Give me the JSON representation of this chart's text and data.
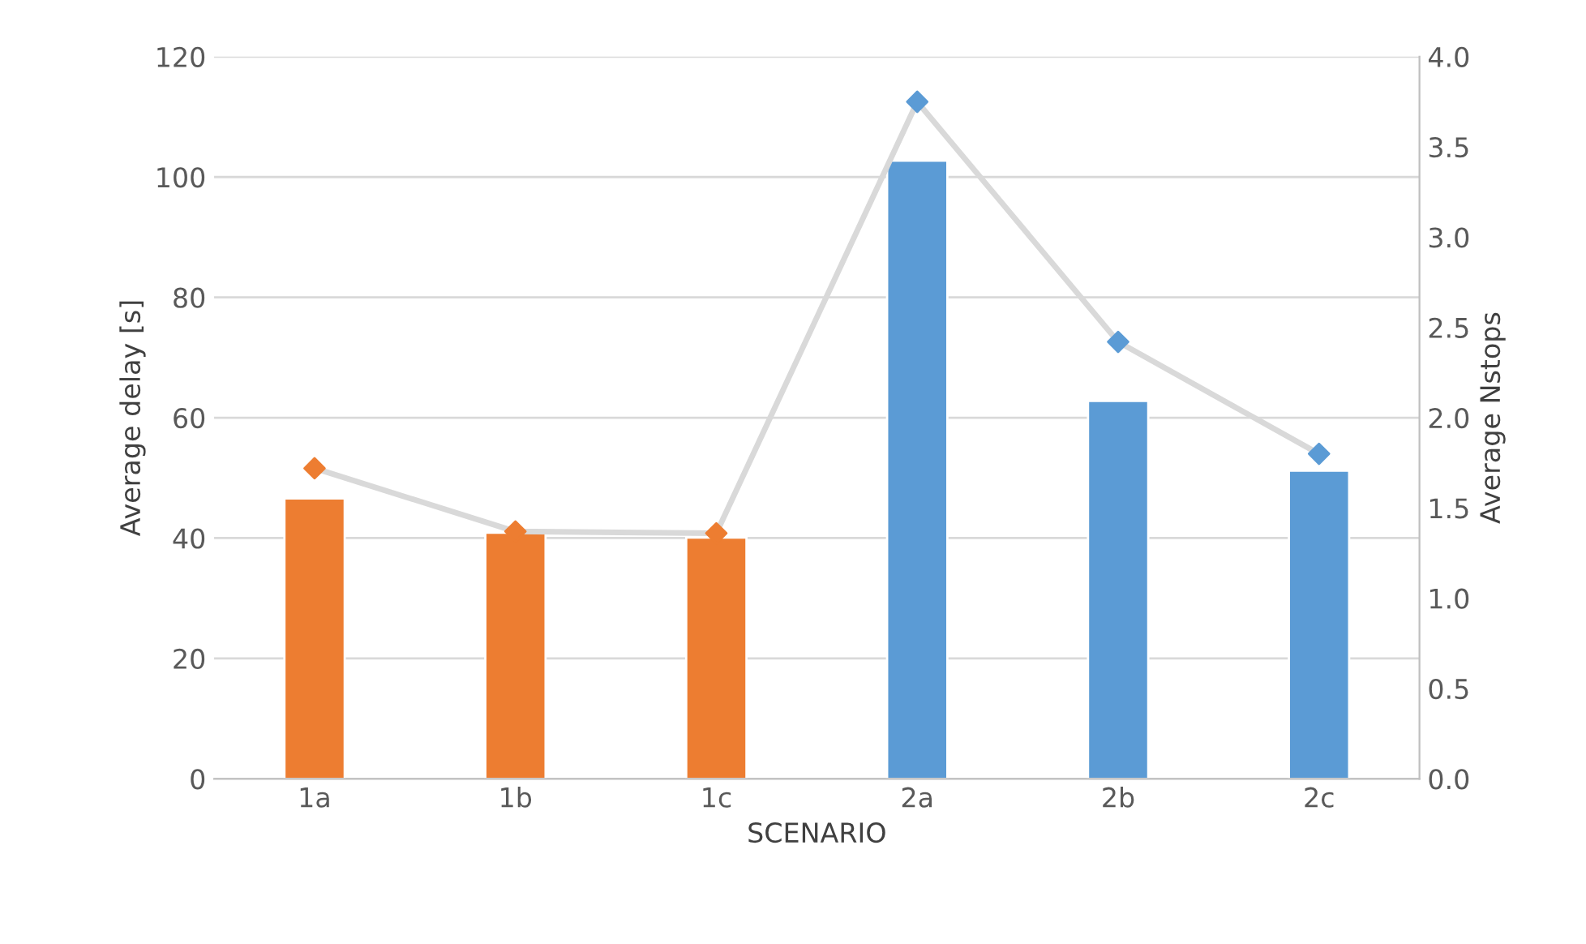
{
  "chart_data": {
    "type": "bar",
    "xlabel": "SCENARIO",
    "ylabel": "Average delay [s]",
    "y2label": "Average Nstops",
    "categories": [
      "1a",
      "1b",
      "1c",
      "2a",
      "2b",
      "2c"
    ],
    "series": [
      {
        "colors": [
          "#ed7d31",
          "#ed7d31",
          "#ed7d31",
          "#5b9bd5",
          "#5b9bd5",
          "#5b9bd5"
        ],
        "values": [
          46.6,
          40.9,
          40.1,
          102.7,
          62.8,
          51.2
        ]
      },
      {
        "type": "line",
        "axis": "y2",
        "color": "#d9d9d9",
        "colors": [
          "#ed7d31",
          "#ed7d31",
          "#ed7d31",
          "#5b9bd5",
          "#5b9bd5",
          "#5b9bd5"
        ],
        "values": [
          1.72,
          1.37,
          1.36,
          3.75,
          2.42,
          1.8
        ]
      }
    ],
    "ylim": [
      0,
      120
    ],
    "yticks": [
      0,
      20,
      40,
      60,
      80,
      100,
      120
    ],
    "y2lim": [
      0,
      4
    ],
    "y2ticks": [
      {
        "value": 0,
        "label": "0.0"
      },
      {
        "value": 0.5,
        "label": "0.5"
      },
      {
        "value": 1,
        "label": "1.0"
      },
      {
        "value": 1.5,
        "label": "1.5"
      },
      {
        "value": 2,
        "label": "2.0"
      },
      {
        "value": 2.5,
        "label": "2.5"
      },
      {
        "value": 3,
        "label": "3.0"
      },
      {
        "value": 3.5,
        "label": "3.5"
      },
      {
        "value": 4,
        "label": "4.0"
      }
    ],
    "grid": "y",
    "marker": "diamond"
  }
}
